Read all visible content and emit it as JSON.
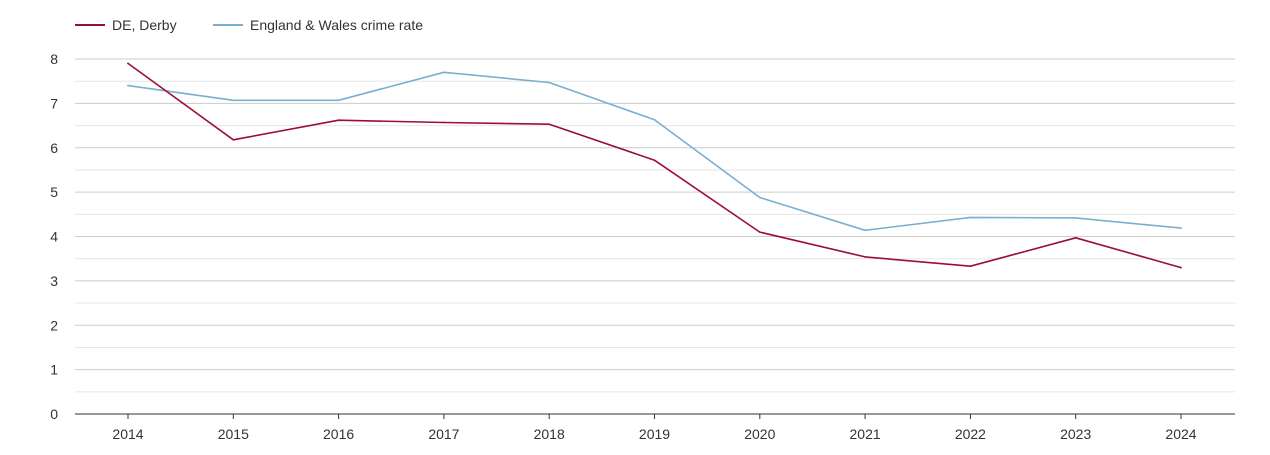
{
  "chart_data": {
    "type": "line",
    "title": "",
    "xlabel": "",
    "ylabel": "",
    "categories": [
      "2014",
      "2015",
      "2016",
      "2017",
      "2018",
      "2019",
      "2020",
      "2021",
      "2022",
      "2023",
      "2024"
    ],
    "ylim": [
      0,
      8
    ],
    "yticks": [
      "0",
      "1",
      "2",
      "3",
      "4",
      "5",
      "6",
      "7",
      "8"
    ],
    "grid": true,
    "legend_position": "top-left",
    "series": [
      {
        "name": "DE, Derby",
        "color": "#9b0f34",
        "values": [
          7.9,
          6.18,
          6.62,
          6.57,
          6.53,
          5.72,
          4.1,
          3.54,
          3.33,
          3.97,
          3.3
        ]
      },
      {
        "name": "England & Wales crime rate",
        "color": "#7bafd0",
        "values": [
          7.4,
          7.07,
          7.07,
          7.7,
          7.47,
          6.63,
          4.88,
          4.14,
          4.43,
          4.42,
          4.19
        ]
      }
    ]
  }
}
